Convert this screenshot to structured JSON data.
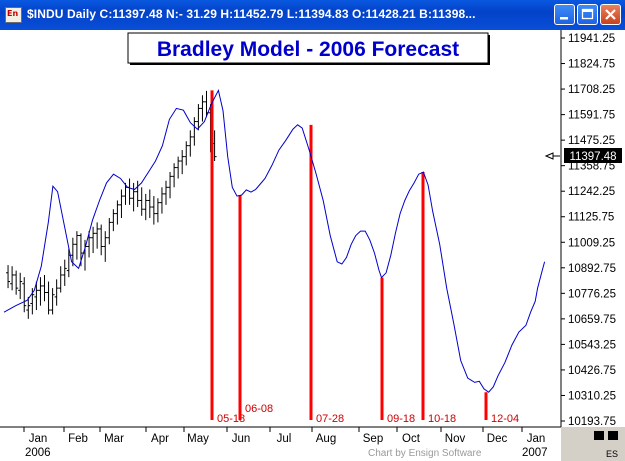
{
  "window": {
    "title": "$INDU Daily C:11397.48 N:- 31.29 H:11452.79 L:11394.83 O:11428.21 B:11398...",
    "app_icon_text": "En"
  },
  "chart_title": "Bradley Model - 2006 Forecast",
  "last_price_label": "11397.48",
  "footer": {
    "year_left": "2006",
    "year_right": "2007",
    "credit": "Chart by Ensign Software",
    "es_label": "ES"
  },
  "colors": {
    "bradley_line": "#0000cc",
    "turn_lines": "#ff0000",
    "price_bars": "#000000",
    "title_text": "#0000cc"
  },
  "chart_data": {
    "type": "line",
    "title": "Bradley Model - 2006 Forecast",
    "y_axis_ticks": [
      "11941.25",
      "11824.75",
      "11708.25",
      "11591.75",
      "11475.25",
      "11358.75",
      "11242.25",
      "11125.75",
      "11009.25",
      "10892.75",
      "10776.25",
      "10659.75",
      "10543.25",
      "10426.75",
      "10310.25",
      "10193.75"
    ],
    "x_axis_ticks": [
      "Jan",
      "Feb",
      "Mar",
      "Apr",
      "May",
      "Jun",
      "Jul",
      "Aug",
      "Sep",
      "Oct",
      "Nov",
      "Dec",
      "Jan"
    ],
    "ylim": [
      10193.75,
      11941.25
    ],
    "turn_dates": [
      {
        "label": "05-18",
        "top": 11702
      },
      {
        "label": "06-08",
        "top": 11225
      },
      {
        "label": "07-28",
        "top": 11545
      },
      {
        "label": "09-18",
        "top": 10848
      },
      {
        "label": "10-18",
        "top": 11330
      },
      {
        "label": "12-04",
        "top": 10325
      }
    ],
    "bradley_line": [
      [
        0,
        10690
      ],
      [
        5,
        10720
      ],
      [
        10,
        10745
      ],
      [
        13,
        10790
      ],
      [
        16,
        10900
      ],
      [
        19,
        11100
      ],
      [
        21,
        11265
      ],
      [
        23,
        11240
      ],
      [
        26,
        11080
      ],
      [
        29,
        10920
      ],
      [
        32,
        10890
      ],
      [
        35,
        10990
      ],
      [
        38,
        11110
      ],
      [
        41,
        11200
      ],
      [
        44,
        11280
      ],
      [
        47,
        11320
      ],
      [
        50,
        11300
      ],
      [
        53,
        11260
      ],
      [
        56,
        11250
      ],
      [
        59,
        11280
      ],
      [
        62,
        11330
      ],
      [
        65,
        11380
      ],
      [
        68,
        11450
      ],
      [
        71,
        11570
      ],
      [
        74,
        11620
      ],
      [
        77,
        11612
      ],
      [
        80,
        11555
      ],
      [
        83,
        11525
      ],
      [
        86,
        11560
      ],
      [
        89,
        11640
      ],
      [
        92,
        11702
      ],
      [
        94,
        11610
      ],
      [
        96,
        11400
      ],
      [
        98,
        11260
      ],
      [
        100,
        11220
      ],
      [
        102,
        11225
      ],
      [
        104,
        11248
      ],
      [
        106,
        11238
      ],
      [
        108,
        11250
      ],
      [
        110,
        11275
      ],
      [
        112,
        11300
      ],
      [
        115,
        11360
      ],
      [
        118,
        11430
      ],
      [
        121,
        11475
      ],
      [
        124,
        11525
      ],
      [
        126,
        11545
      ],
      [
        128,
        11530
      ],
      [
        131,
        11430
      ],
      [
        134,
        11320
      ],
      [
        137,
        11200
      ],
      [
        140,
        11040
      ],
      [
        143,
        10920
      ],
      [
        145,
        10910
      ],
      [
        147,
        10940
      ],
      [
        149,
        11000
      ],
      [
        151,
        11040
      ],
      [
        153,
        11060
      ],
      [
        155,
        11060
      ],
      [
        157,
        11020
      ],
      [
        159,
        10960
      ],
      [
        161,
        10880
      ],
      [
        162,
        10848
      ],
      [
        164,
        10870
      ],
      [
        166,
        10950
      ],
      [
        168,
        11050
      ],
      [
        170,
        11140
      ],
      [
        172,
        11200
      ],
      [
        174,
        11245
      ],
      [
        176,
        11280
      ],
      [
        178,
        11320
      ],
      [
        180,
        11330
      ],
      [
        182,
        11270
      ],
      [
        184,
        11150
      ],
      [
        187,
        11000
      ],
      [
        190,
        10800
      ],
      [
        193,
        10640
      ],
      [
        196,
        10470
      ],
      [
        199,
        10390
      ],
      [
        202,
        10370
      ],
      [
        204,
        10375
      ],
      [
        206,
        10340
      ],
      [
        208,
        10325
      ],
      [
        210,
        10350
      ],
      [
        212,
        10400
      ],
      [
        215,
        10460
      ],
      [
        218,
        10540
      ],
      [
        221,
        10600
      ],
      [
        224,
        10630
      ],
      [
        226,
        10690
      ],
      [
        228,
        10740
      ],
      [
        229,
        10800
      ],
      [
        231,
        10880
      ],
      [
        232,
        10920
      ]
    ],
    "price_bars": [
      [
        1,
        10905,
        10800,
        10870,
        10830
      ],
      [
        2,
        10900,
        10790,
        10820,
        10860
      ],
      [
        3,
        10880,
        10770,
        10860,
        10800
      ],
      [
        4,
        10870,
        10750,
        10790,
        10830
      ],
      [
        5,
        10850,
        10690,
        10820,
        10720
      ],
      [
        6,
        10760,
        10660,
        10700,
        10720
      ],
      [
        7,
        10800,
        10680,
        10730,
        10770
      ],
      [
        8,
        10830,
        10700,
        10760,
        10790
      ],
      [
        9,
        10850,
        10720,
        10790,
        10810
      ],
      [
        10,
        10860,
        10740,
        10810,
        10780
      ],
      [
        11,
        10830,
        10680,
        10780,
        10700
      ],
      [
        12,
        10800,
        10680,
        10700,
        10770
      ],
      [
        13,
        10840,
        10720,
        10760,
        10800
      ],
      [
        14,
        10900,
        10780,
        10800,
        10860
      ],
      [
        15,
        10930,
        10810,
        10860,
        10890
      ],
      [
        16,
        10980,
        10850,
        10880,
        10950
      ],
      [
        17,
        11030,
        10900,
        10950,
        11000
      ],
      [
        18,
        11060,
        10930,
        11000,
        11040
      ],
      [
        19,
        11050,
        10900,
        11040,
        10960
      ],
      [
        20,
        11020,
        10880,
        10960,
        10990
      ],
      [
        21,
        11060,
        10940,
        10990,
        11030
      ],
      [
        22,
        11080,
        10960,
        11030,
        11050
      ],
      [
        23,
        11100,
        10980,
        11050,
        11070
      ],
      [
        24,
        11090,
        10950,
        11070,
        10990
      ],
      [
        25,
        11060,
        10920,
        10990,
        11030
      ],
      [
        26,
        11120,
        11000,
        11030,
        11100
      ],
      [
        27,
        11160,
        11060,
        11100,
        11140
      ],
      [
        28,
        11200,
        11090,
        11140,
        11180
      ],
      [
        29,
        11250,
        11120,
        11180,
        11220
      ],
      [
        30,
        11280,
        11180,
        11220,
        11260
      ],
      [
        31,
        11300,
        11180,
        11260,
        11210
      ],
      [
        32,
        11280,
        11150,
        11210,
        11240
      ],
      [
        33,
        11290,
        11170,
        11240,
        11200
      ],
      [
        34,
        11260,
        11130,
        11200,
        11160
      ],
      [
        35,
        11230,
        11110,
        11160,
        11200
      ],
      [
        36,
        11250,
        11120,
        11200,
        11170
      ],
      [
        37,
        11220,
        11090,
        11170,
        11140
      ],
      [
        38,
        11210,
        11100,
        11140,
        11190
      ],
      [
        39,
        11260,
        11140,
        11190,
        11230
      ],
      [
        40,
        11290,
        11180,
        11230,
        11260
      ],
      [
        41,
        11330,
        11210,
        11260,
        11310
      ],
      [
        42,
        11370,
        11260,
        11310,
        11350
      ],
      [
        43,
        11400,
        11300,
        11350,
        11380
      ],
      [
        44,
        11430,
        11320,
        11380,
        11400
      ],
      [
        45,
        11470,
        11360,
        11400,
        11450
      ],
      [
        46,
        11520,
        11400,
        11450,
        11490
      ],
      [
        47,
        11580,
        11450,
        11490,
        11560
      ],
      [
        48,
        11640,
        11520,
        11560,
        11620
      ],
      [
        49,
        11680,
        11560,
        11620,
        11650
      ],
      [
        50,
        11700,
        11580,
        11650,
        11600
      ],
      [
        51,
        11640,
        11420,
        11600,
        11460
      ],
      [
        52,
        11520,
        11380,
        11460,
        11400
      ]
    ]
  }
}
